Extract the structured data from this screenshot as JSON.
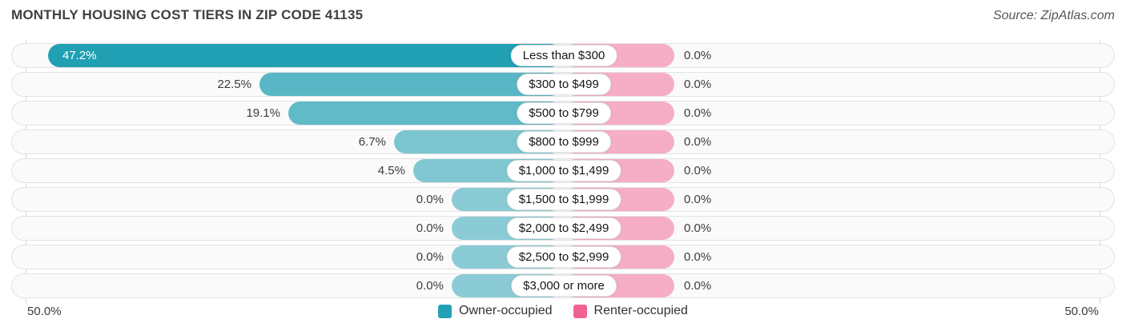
{
  "title": "MONTHLY HOUSING COST TIERS IN ZIP CODE 41135",
  "source": "Source: ZipAtlas.com",
  "axis": {
    "left_label": "50.0%",
    "right_label": "50.0%"
  },
  "legend": [
    {
      "label": "Owner-occupied",
      "color": "#22a1b6"
    },
    {
      "label": "Renter-occupied",
      "color": "#f06292"
    }
  ],
  "colors": {
    "owner_base_rgb": "27,156,177",
    "renter_base_rgb": "240,98,146",
    "track_bg": "#fafafa",
    "track_border": "#e2e2e2",
    "gridline": "#d8d8d8"
  },
  "chart_data": {
    "type": "bar",
    "variant": "diverging-horizontal",
    "title": "Monthly Housing Cost Tiers in Zip Code 41135",
    "categories": [
      "Less than $300",
      "$300 to $499",
      "$500 to $799",
      "$800 to $999",
      "$1,000 to $1,499",
      "$1,500 to $1,999",
      "$2,000 to $2,499",
      "$2,500 to $2,999",
      "$3,000 or more"
    ],
    "series": [
      {
        "name": "Owner-occupied",
        "side": "left",
        "values": [
          47.2,
          22.5,
          19.1,
          6.7,
          4.5,
          0.0,
          0.0,
          0.0,
          0.0
        ]
      },
      {
        "name": "Renter-occupied",
        "side": "right",
        "values": [
          0.0,
          0.0,
          0.0,
          0.0,
          0.0,
          0.0,
          0.0,
          0.0,
          0.0
        ]
      }
    ],
    "value_suffix": "%",
    "xlim_left": 50.0,
    "xlim_right": 50.0,
    "legend_position": "bottom-center",
    "grid": "side-gridlines-only"
  }
}
